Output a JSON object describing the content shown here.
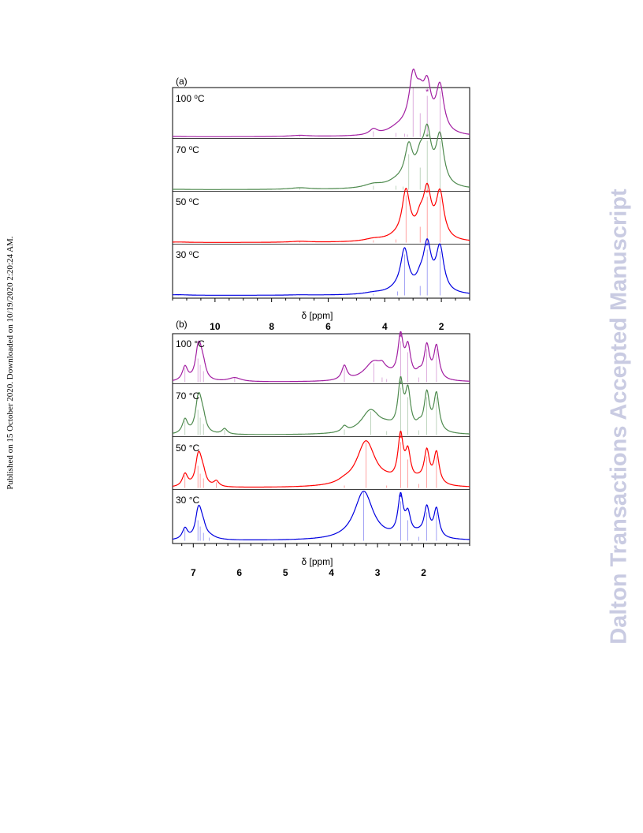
{
  "page": {
    "published_stamp": "Published on 15 October 2020. Downloaded on 10/19/2020 2:20:24 AM.",
    "watermark": "Dalton Transactions Accepted Manuscript"
  },
  "chart_data": [
    {
      "type": "line",
      "panel_label": "(a)",
      "xlabel": "δ [ppm]",
      "xlim": [
        11.5,
        1.0
      ],
      "x_reversed": true,
      "x_ticks": [
        10,
        8,
        6,
        4,
        2
      ],
      "series": [
        {
          "name": "100 °C",
          "label_sup": "o",
          "color": "#a21ea2",
          "star": 2.5,
          "peaks": [
            [
              11.4,
              0.4
            ],
            [
              7.0,
              1.5
            ],
            [
              4.4,
              7
            ],
            [
              3.6,
              5
            ],
            [
              3.3,
              4
            ],
            [
              3.2,
              3
            ],
            [
              3.0,
              62
            ],
            [
              2.75,
              30
            ],
            [
              2.5,
              52
            ],
            [
              2.05,
              58
            ]
          ]
        },
        {
          "name": "70 °C",
          "label_sup": "o",
          "color": "#4e8a4e",
          "star": 2.5,
          "peaks": [
            [
              11.3,
              0.4
            ],
            [
              7.0,
              2
            ],
            [
              4.4,
              5
            ],
            [
              3.6,
              5
            ],
            [
              3.35,
              4
            ],
            [
              3.15,
              45
            ],
            [
              2.75,
              28
            ],
            [
              2.5,
              62
            ],
            [
              2.05,
              62
            ]
          ]
        },
        {
          "name": "50 °C",
          "label_sup": "o",
          "color": "#ff0000",
          "star": 2.5,
          "peaks": [
            [
              11.3,
              0.6
            ],
            [
              7.0,
              1.2
            ],
            [
              4.4,
              3
            ],
            [
              3.6,
              4
            ],
            [
              3.25,
              60
            ],
            [
              2.75,
              20
            ],
            [
              2.5,
              58
            ],
            [
              2.05,
              58
            ]
          ]
        },
        {
          "name": "30 °C",
          "label_sup": "o",
          "color": "#0000e0",
          "star": 2.5,
          "peaks": [
            [
              11.3,
              0.8
            ],
            [
              7.0,
              0.4
            ],
            [
              4.4,
              2
            ],
            [
              3.55,
              5
            ],
            [
              3.3,
              52
            ],
            [
              2.75,
              12
            ],
            [
              2.5,
              58
            ],
            [
              2.05,
              56
            ]
          ]
        }
      ]
    },
    {
      "type": "line",
      "panel_label": "(b)",
      "xlabel": "δ [ppm]",
      "xlim": [
        7.45,
        1.0
      ],
      "x_reversed": true,
      "x_ticks": [
        7,
        6,
        5,
        4,
        3,
        2
      ],
      "series": [
        {
          "name": "100 °C",
          "label_sup": "",
          "color": "#a21ea2",
          "star": 2.5,
          "peaks": [
            [
              7.18,
              18
            ],
            [
              6.9,
              30
            ],
            [
              6.85,
              22
            ],
            [
              6.78,
              14
            ],
            [
              6.1,
              5
            ],
            [
              3.72,
              18
            ],
            [
              3.08,
              24
            ],
            [
              2.9,
              6
            ],
            [
              2.8,
              4
            ],
            [
              2.5,
              52
            ],
            [
              2.34,
              38
            ],
            [
              2.1,
              6
            ],
            [
              1.93,
              42
            ],
            [
              1.72,
              42
            ]
          ]
        },
        {
          "name": "70 °C",
          "label_sup": "",
          "color": "#4e8a4e",
          "star": 2.5,
          "peaks": [
            [
              7.18,
              18
            ],
            [
              6.9,
              32
            ],
            [
              6.85,
              22
            ],
            [
              6.78,
              14
            ],
            [
              6.32,
              7
            ],
            [
              3.72,
              7
            ],
            [
              3.15,
              30
            ],
            [
              2.8,
              5
            ],
            [
              2.5,
              60
            ],
            [
              2.34,
              48
            ],
            [
              2.1,
              6
            ],
            [
              1.93,
              48
            ],
            [
              1.72,
              48
            ]
          ]
        },
        {
          "name": "50 °C",
          "label_sup": "",
          "color": "#ff0000",
          "star": 2.5,
          "peaks": [
            [
              7.18,
              16
            ],
            [
              6.9,
              28
            ],
            [
              6.85,
              18
            ],
            [
              6.78,
              12
            ],
            [
              6.5,
              7
            ],
            [
              3.72,
              3
            ],
            [
              3.25,
              58
            ],
            [
              2.8,
              3
            ],
            [
              2.5,
              58
            ],
            [
              2.34,
              36
            ],
            [
              2.1,
              5
            ],
            [
              1.93,
              40
            ],
            [
              1.72,
              40
            ]
          ]
        },
        {
          "name": "30 °C",
          "label_sup": "",
          "color": "#0000e0",
          "star": 2.5,
          "peaks": [
            [
              7.18,
              14
            ],
            [
              6.9,
              26
            ],
            [
              6.85,
              18
            ],
            [
              6.78,
              10
            ],
            [
              6.65,
              4
            ],
            [
              3.3,
              62
            ],
            [
              2.5,
              50
            ],
            [
              2.34,
              26
            ],
            [
              2.1,
              5
            ],
            [
              1.93,
              36
            ],
            [
              1.72,
              36
            ]
          ]
        }
      ]
    }
  ]
}
